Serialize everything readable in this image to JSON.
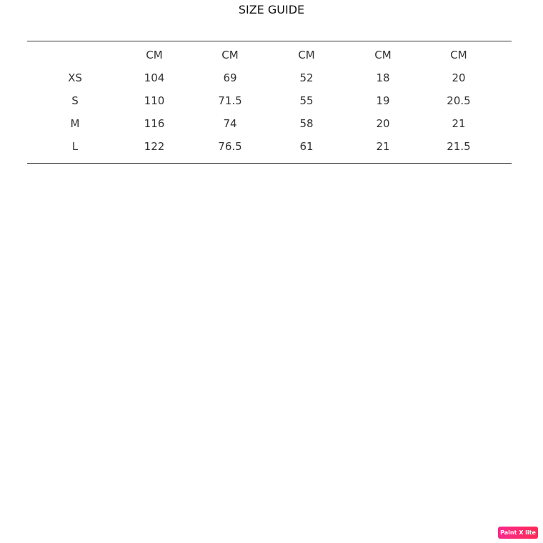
{
  "title": "SIZE GUIDE",
  "table": {
    "header": [
      "",
      "CM",
      "CM",
      "CM",
      "CM",
      "CM"
    ],
    "rows": [
      [
        "XS",
        "104",
        "69",
        "52",
        "18",
        "20"
      ],
      [
        "S",
        "110",
        "71.5",
        "55",
        "19",
        "20.5"
      ],
      [
        "M",
        "116",
        "74",
        "58",
        "20",
        "21"
      ],
      [
        "L",
        "122",
        "76.5",
        "61",
        "21",
        "21.5"
      ]
    ]
  },
  "watermark": {
    "label": "Paint X lite",
    "color": "#f72b6e"
  }
}
